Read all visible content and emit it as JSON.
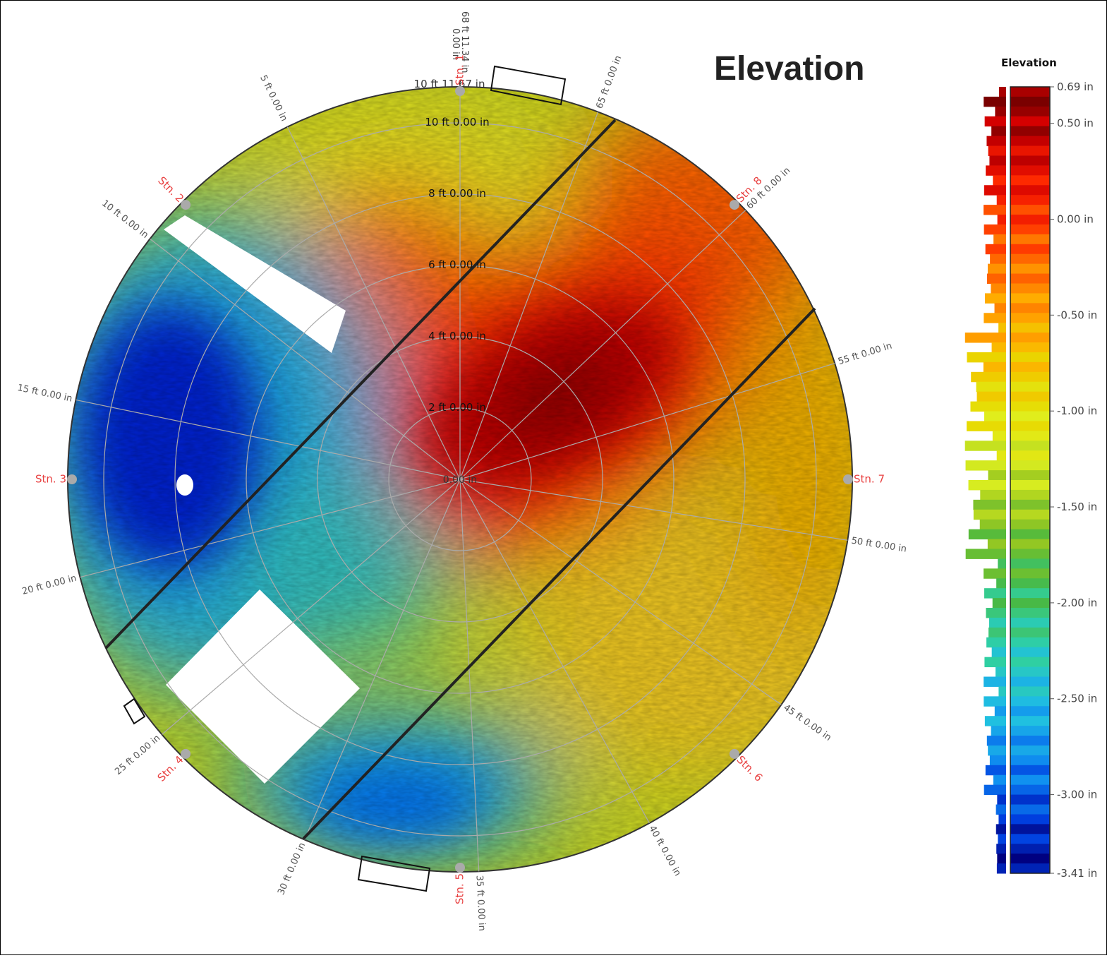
{
  "title": "Elevation",
  "chart_data": {
    "type": "heatmap",
    "projection": "polar",
    "colorbar": {
      "title": "Elevation",
      "range": [
        -3.41,
        0.69
      ],
      "unit": "in",
      "ticks": [
        {
          "value": 0.69,
          "label": "0.69 in"
        },
        {
          "value": 0.5,
          "label": "0.50 in"
        },
        {
          "value": 0.0,
          "label": "0.00 in"
        },
        {
          "value": -0.5,
          "label": "-0.50 in"
        },
        {
          "value": -1.0,
          "label": "-1.00 in"
        },
        {
          "value": -1.5,
          "label": "-1.50 in"
        },
        {
          "value": -2.0,
          "label": "-2.00 in"
        },
        {
          "value": -2.5,
          "label": "-2.50 in"
        },
        {
          "value": -3.0,
          "label": "-3.00 in"
        },
        {
          "value": -3.41,
          "label": "-3.41 in"
        }
      ],
      "colors": [
        "#7a0000",
        "#d40000",
        "#ff2a00",
        "#ff7a00",
        "#ffb000",
        "#e8d800",
        "#dff020",
        "#9ac820",
        "#4ab840",
        "#30d0a0",
        "#20c0e0",
        "#1090f0",
        "#0040e0",
        "#000080"
      ],
      "histogram": true
    },
    "radial_ticks": [
      {
        "label": "2 ft 0.00 in",
        "value_ft": 2
      },
      {
        "label": "4 ft 0.00 in",
        "value_ft": 4
      },
      {
        "label": "6 ft 0.00 in",
        "value_ft": 6
      },
      {
        "label": "8 ft 0.00 in",
        "value_ft": 8
      },
      {
        "label": "10 ft 0.00 in",
        "value_ft": 10
      }
    ],
    "outer_radius_label": "10 ft 11.67 in",
    "center_label": "0.00 in",
    "circumference_label": "68 ft 11.34 in",
    "circumference_zero_label": "0.00 in",
    "circumference_ft": 68.945,
    "angular_ticks": [
      {
        "label": "5 ft 0.00 in",
        "value_ft": 5
      },
      {
        "label": "10 ft 0.00 in",
        "value_ft": 10
      },
      {
        "label": "15 ft 0.00 in",
        "value_ft": 15
      },
      {
        "label": "20 ft 0.00 in",
        "value_ft": 20
      },
      {
        "label": "25 ft 0.00 in",
        "value_ft": 25
      },
      {
        "label": "30 ft 0.00 in",
        "value_ft": 30
      },
      {
        "label": "35 ft 0.00 in",
        "value_ft": 35
      },
      {
        "label": "40 ft 0.00 in",
        "value_ft": 40
      },
      {
        "label": "45 ft 0.00 in",
        "value_ft": 45
      },
      {
        "label": "50 ft 0.00 in",
        "value_ft": 50
      },
      {
        "label": "55 ft 0.00 in",
        "value_ft": 55
      },
      {
        "label": "60 ft 0.00 in",
        "value_ft": 60
      },
      {
        "label": "65 ft 0.00 in",
        "value_ft": 65
      }
    ],
    "stations": [
      "Stn. 1",
      "Stn. 2",
      "Stn. 3",
      "Stn. 4",
      "Stn. 5",
      "Stn. 6",
      "Stn. 7",
      "Stn. 8"
    ],
    "station_color": "#e84040",
    "regions": [
      {
        "description_level": "high",
        "approx_value": 0.6
      },
      {
        "description_level": "low",
        "approx_value": -3.3
      }
    ]
  }
}
